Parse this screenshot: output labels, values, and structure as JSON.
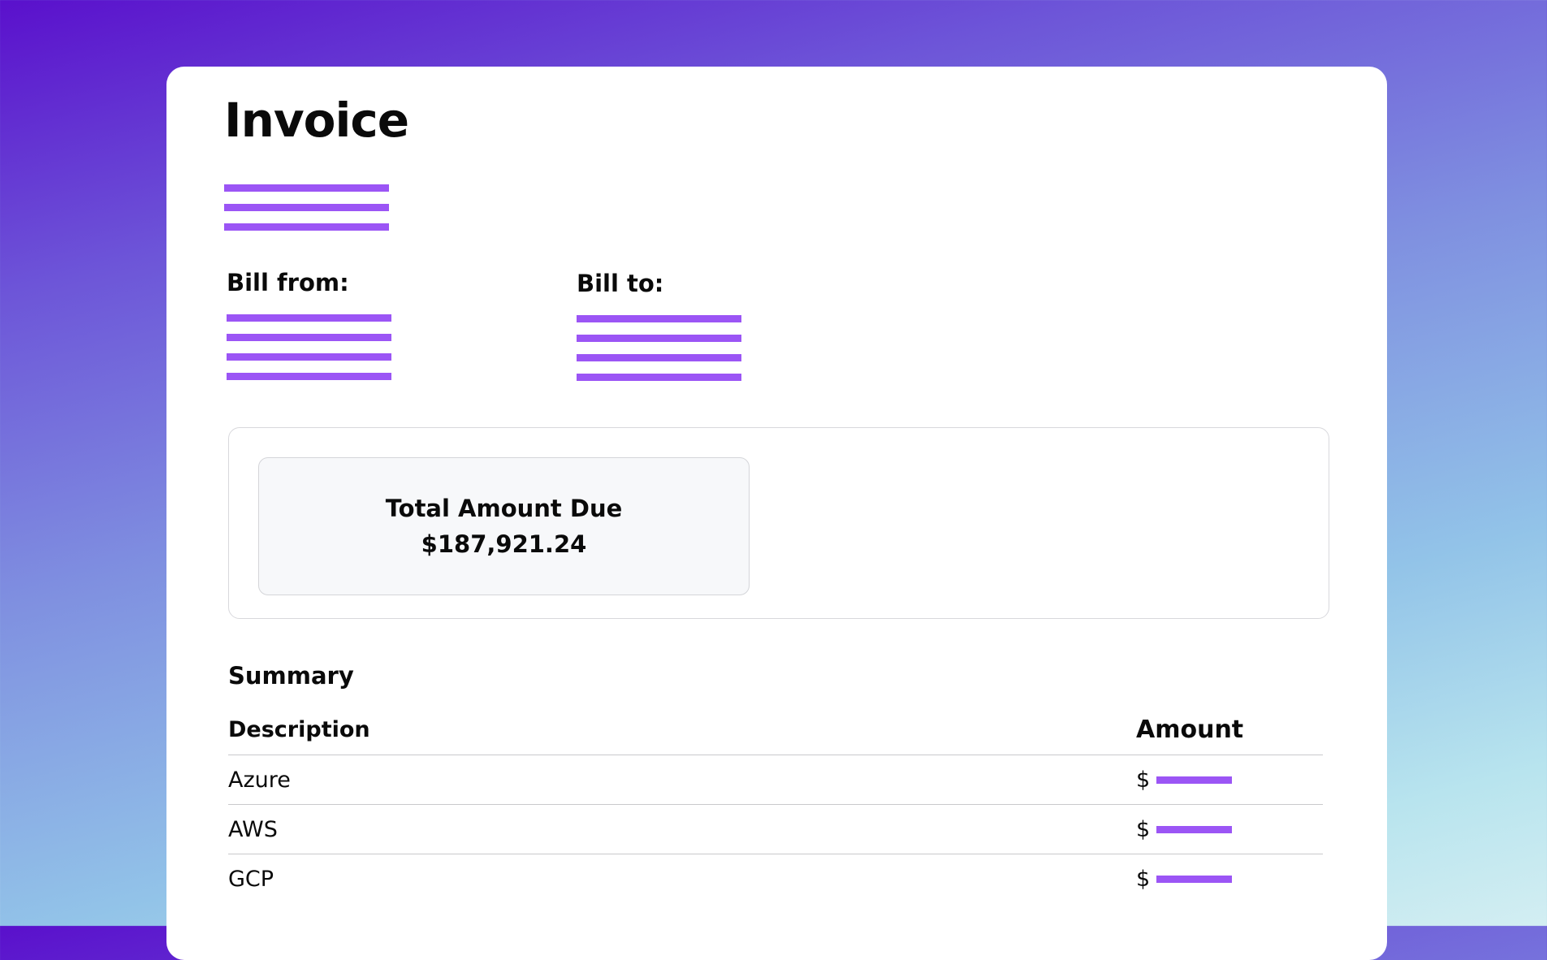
{
  "invoice": {
    "title": "Invoice"
  },
  "bill_from": {
    "label": "Bill from:"
  },
  "bill_to": {
    "label": "Bill to:"
  },
  "total_due": {
    "label": "Total Amount Due",
    "value": "$187,921.24"
  },
  "summary": {
    "title": "Summary",
    "headers": {
      "description": "Description",
      "amount": "Amount"
    },
    "rows": [
      {
        "description": "Azure",
        "currency": "$"
      },
      {
        "description": "AWS",
        "currency": "$"
      },
      {
        "description": "GCP",
        "currency": "$"
      }
    ]
  },
  "colors": {
    "accent": "#9b55f5",
    "background_top": "#5a10cc",
    "background_bottom": "#d3eef2"
  }
}
